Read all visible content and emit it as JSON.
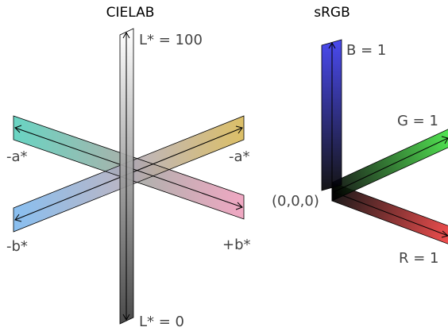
{
  "titles": {
    "cielab": "CIELAB",
    "srgb": "sRGB"
  },
  "cielab": {
    "l_max_label": "L* = 100",
    "l_min_label": "L* = 0",
    "neg_a_left_label": "-a*",
    "neg_a_right_label": "-a*",
    "neg_b_label": "-b*",
    "pos_b_label": "+b*",
    "colors": {
      "a_left": "#4ecdb8",
      "a_right": "#d6b44c",
      "b_left": "#74b4ee",
      "b_right": "#ee98b8",
      "l_top": "#ffffff",
      "l_bottom": "#3a3a3a"
    }
  },
  "srgb": {
    "origin_label": "(0,0,0)",
    "b_label": "B = 1",
    "g_label": "G = 1",
    "r_label": "R = 1",
    "colors": {
      "b": "#3a3aee",
      "g": "#3ee03e",
      "r": "#ee3a3a",
      "origin": "#000000"
    }
  }
}
